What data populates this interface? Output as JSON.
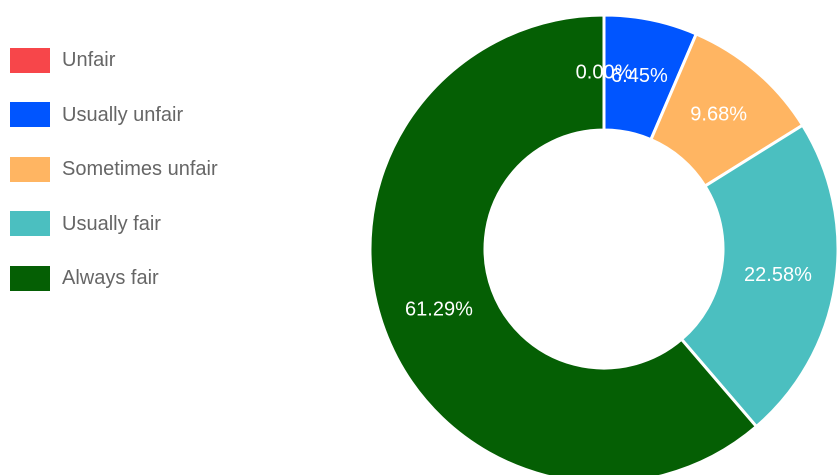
{
  "chart_data": {
    "type": "pie",
    "variant": "donut",
    "title": "",
    "legend_position": "left",
    "categories": [
      "Unfair",
      "Usually unfair",
      "Sometimes unfair",
      "Usually fair",
      "Always fair"
    ],
    "values": [
      0.0,
      6.45,
      9.68,
      22.58,
      61.29
    ],
    "data_labels": [
      "0.00%",
      "6.45%",
      "9.68%",
      "22.58%",
      "61.29%"
    ],
    "colors": [
      "#f7464a",
      "#0055ff",
      "#ffb562",
      "#4bbfc0",
      "#055f04"
    ]
  }
}
